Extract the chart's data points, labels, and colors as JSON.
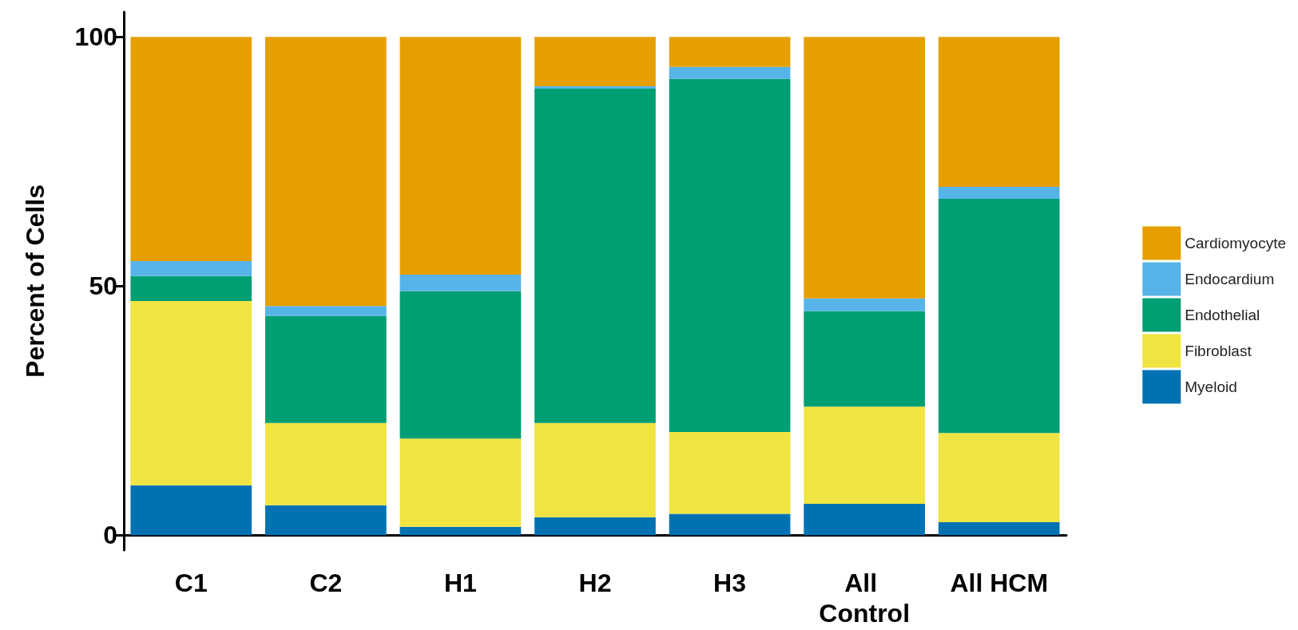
{
  "chart_data": {
    "type": "bar",
    "ylabel": "Percent of Cells",
    "categories": [
      "C1",
      "C2",
      "H1",
      "H2",
      "H3",
      "All Control",
      "All HCM"
    ],
    "stacked": true,
    "legend": "right",
    "grid": false,
    "ylim": [
      -3,
      105
    ],
    "yticks": [
      0,
      50,
      100
    ],
    "series": [
      {
        "name": "Myeloid",
        "color": "#0072b2",
        "values": [
          10,
          6,
          1.7,
          3.6,
          4.3,
          6.3,
          2.6
        ]
      },
      {
        "name": "Fibroblast",
        "color": "#f0e442",
        "values": [
          37,
          16.5,
          17.7,
          18.9,
          16.4,
          19.5,
          17.9
        ]
      },
      {
        "name": "Endothelial",
        "color": "#009e73",
        "values": [
          5,
          21.5,
          29.6,
          67.1,
          70.9,
          19.2,
          47
        ]
      },
      {
        "name": "Endocardium",
        "color": "#56b4e9",
        "values": [
          3,
          2,
          3.3,
          0.5,
          2.4,
          2.5,
          2.4
        ]
      },
      {
        "name": "Cardiomyocyte",
        "color": "#e69f00",
        "values": [
          45,
          54,
          47.7,
          9.9,
          6,
          52.5,
          30.1
        ]
      }
    ]
  }
}
